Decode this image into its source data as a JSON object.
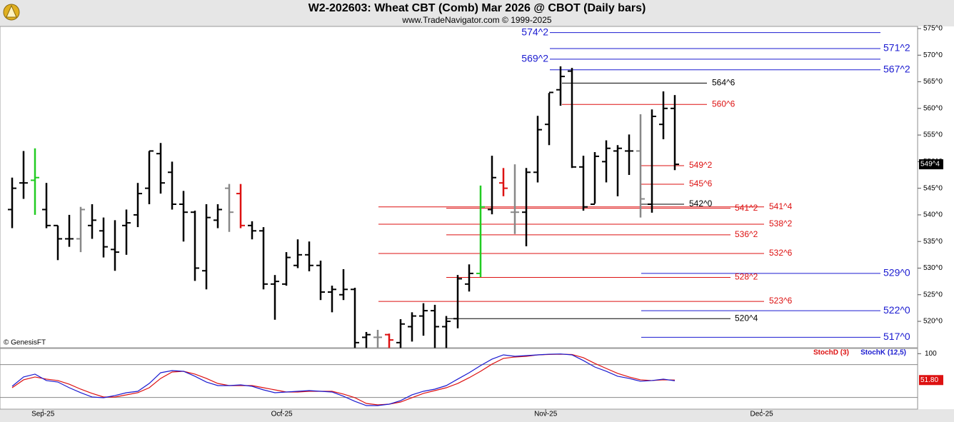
{
  "chart_data": {
    "type": "ohlc",
    "title": "W2-202603:  Wheat CBT (Comb) Mar 2026 @ CBOT  (Daily bars)",
    "subtitle": "www.TradeNavigator.com © 1999-2025",
    "watermark": "© GenesisFT",
    "categories": [
      null,
      null,
      null,
      null,
      null,
      null,
      null,
      null,
      null,
      null,
      null,
      null,
      null,
      null,
      null,
      null,
      null,
      null,
      null,
      null,
      null,
      null,
      null,
      null,
      null,
      null,
      null,
      null,
      null,
      null,
      null,
      null,
      null,
      null,
      null,
      null,
      null,
      null,
      null,
      null,
      null,
      null,
      null,
      null,
      null,
      null,
      null,
      null,
      null,
      null,
      null,
      null,
      null,
      null,
      null,
      null,
      null,
      null,
      null
    ],
    "xlim": [
      -1.0625,
      79.25
    ],
    "xticks": [
      {
        "value": 2.7,
        "label": "Sep-25"
      },
      {
        "value": 23.6,
        "label": "Oct-25"
      },
      {
        "value": 46.7,
        "label": "Nov-25"
      },
      {
        "value": 65.6,
        "label": "Dec-25"
      }
    ],
    "ylim": [
      515.04,
      575.4
    ],
    "yticks": [
      {
        "value": 575,
        "label": "575^0"
      },
      {
        "value": 570,
        "label": "570^0"
      },
      {
        "value": 565,
        "label": "565^0"
      },
      {
        "value": 560,
        "label": "560^0"
      },
      {
        "value": 555,
        "label": "555^0"
      },
      {
        "value": 550,
        "label": "550^0"
      },
      {
        "value": 545,
        "label": "545^0"
      },
      {
        "value": 540,
        "label": "540^0"
      },
      {
        "value": 535,
        "label": "535^0"
      },
      {
        "value": 530,
        "label": "530^0"
      },
      {
        "value": 525,
        "label": "525^0"
      },
      {
        "value": 520,
        "label": "520^0"
      }
    ],
    "ohlc": {
      "color": "#000000",
      "open": [
        541,
        546,
        546.5,
        541,
        538,
        535.5,
        535.5,
        538,
        537,
        533.5,
        538,
        540,
        545,
        551.5,
        548,
        542,
        540.5,
        529.5,
        539,
        545,
        544,
        538,
        537,
        527,
        527,
        530.5,
        532.5,
        530.5,
        525.5,
        525,
        526,
        517,
        517,
        517.5,
        516,
        519,
        521,
        522,
        519,
        520.5,
        527,
        529,
        541,
        546,
        540.5,
        540.5,
        548,
        557,
        563.5,
        567,
        549,
        542,
        550,
        552,
        552,
        552,
        542,
        557,
        560
      ],
      "high": [
        547,
        552,
        552.5,
        546,
        538,
        540,
        541.5,
        542,
        539.5,
        539,
        541,
        546,
        552,
        553.5,
        550,
        544.5,
        540.8,
        542,
        542,
        545.8,
        545.8,
        538.8,
        537.7,
        528.7,
        533,
        535.4,
        535,
        531.4,
        526.7,
        529.8,
        526.3,
        518,
        518.4,
        517.7,
        520.4,
        521.7,
        523.4,
        523.1,
        521,
        528.7,
        530.7,
        545.5,
        551.1,
        548.8,
        549.5,
        548.8,
        558.6,
        562.9,
        567.9,
        567.6,
        551.1,
        551.8,
        554,
        553.1,
        555.1,
        558.9,
        559.8,
        563.2,
        562.5
      ],
      "low": [
        537.5,
        543,
        540,
        537.5,
        531.5,
        534,
        533,
        535.5,
        532,
        529.5,
        532.5,
        537.7,
        542,
        544,
        541,
        535,
        527.6,
        526,
        537.5,
        536.8,
        537.5,
        535.4,
        526,
        520.3,
        526.7,
        530,
        529.4,
        524,
        521.7,
        524,
        515,
        515,
        515,
        515,
        515,
        516.2,
        517.3,
        515,
        515,
        518.7,
        525.6,
        528.3,
        540.1,
        543.5,
        536.4,
        534.1,
        546.1,
        553.1,
        560.5,
        548.8,
        540.8,
        542.1,
        546.1,
        543.5,
        547.5,
        539.5,
        540.4,
        554.2,
        548.4
      ],
      "close": [
        545,
        546,
        547,
        538,
        535.5,
        535.5,
        541,
        539,
        534,
        533,
        538.5,
        544,
        552,
        546,
        542,
        540.5,
        530,
        539.5,
        541,
        540.5,
        538,
        537,
        527,
        527.5,
        532,
        532.5,
        530.5,
        525.5,
        526,
        526,
        516,
        517.5,
        517,
        516.5,
        519.5,
        521,
        522,
        519,
        520,
        528,
        529,
        541.5,
        547,
        545,
        540.5,
        548,
        556,
        563,
        566,
        549,
        541.5,
        551,
        552.5,
        552.5,
        552,
        543,
        558.5,
        560,
        549.5
      ],
      "highlights": [
        {
          "index": 2,
          "color": "#22cc22"
        },
        {
          "index": 6,
          "color": "#888888"
        },
        {
          "index": 19,
          "color": "#888888"
        },
        {
          "index": 20,
          "color": "#dd1111"
        },
        {
          "index": 32,
          "color": "#888888"
        },
        {
          "index": 33,
          "color": "#dd1111"
        },
        {
          "index": 41,
          "color": "#22cc22"
        },
        {
          "index": 43,
          "color": "#dd1111"
        },
        {
          "index": 44,
          "color": "#888888"
        },
        {
          "index": 55,
          "color": "#888888"
        }
      ]
    },
    "last_price": {
      "value": 549.5,
      "label": "549^4"
    },
    "levels": [
      {
        "value": 574.25,
        "label": "574^2",
        "color": "#1a1ad0"
      },
      {
        "value": 571.25,
        "label": "571^2",
        "color": "#1a1ad0"
      },
      {
        "value": 569.25,
        "label": "569^2",
        "color": "#1a1ad0"
      },
      {
        "value": 567.25,
        "label": "567^2",
        "color": "#1a1ad0"
      },
      {
        "value": 564.75,
        "label": "564^6",
        "color": "#000000"
      },
      {
        "value": 560.75,
        "label": "560^6",
        "color": "#dd1111"
      },
      {
        "value": 549.25,
        "label": "549^2",
        "color": "#dd1111"
      },
      {
        "value": 545.75,
        "label": "545^6",
        "color": "#dd1111"
      },
      {
        "value": 542.0,
        "label": "542^0",
        "color": "#000000"
      },
      {
        "value": 541.25,
        "label": "541^2",
        "color": "#dd1111"
      },
      {
        "value": 541.5,
        "label": "541^4",
        "color": "#dd1111"
      },
      {
        "value": 538.25,
        "label": "538^2",
        "color": "#dd1111"
      },
      {
        "value": 536.25,
        "label": "536^2",
        "color": "#dd1111"
      },
      {
        "value": 532.75,
        "label": "532^6",
        "color": "#dd1111"
      },
      {
        "value": 529.0,
        "label": "529^0",
        "color": "#1a1ad0"
      },
      {
        "value": 528.25,
        "label": "528^2",
        "color": "#dd1111"
      },
      {
        "value": 523.75,
        "label": "523^6",
        "color": "#dd1111"
      },
      {
        "value": 522.0,
        "label": "522^0",
        "color": "#1a1ad0"
      },
      {
        "value": 520.5,
        "label": "520^4",
        "color": "#000000"
      },
      {
        "value": 517.0,
        "label": "517^0",
        "color": "#1a1ad0"
      }
    ],
    "indicator": {
      "type": "line",
      "ylim": [
        0,
        110.8
      ],
      "yticks": [
        100
      ],
      "bands": [
        20,
        80
      ],
      "series": [
        {
          "name": "StochD (3)",
          "color": "#dd1111",
          "values": [
            37.8,
            52.2,
            57.4,
            53.5,
            50.9,
            44.3,
            35.2,
            27.4,
            20.9,
            20.9,
            24.8,
            28.7,
            37.8,
            54.8,
            66.5,
            67.8,
            62.6,
            54.8,
            45.6,
            41.7,
            41.7,
            41.7,
            37.8,
            33.9,
            30.0,
            30.0,
            31.3,
            31.3,
            31.3,
            26.1,
            19.6,
            9.1,
            6.5,
            7.8,
            11.7,
            19.6,
            27.4,
            32.6,
            37.8,
            45.6,
            56.1,
            67.8,
            80.9,
            91.3,
            93.9,
            95.2,
            97.8,
            98.5,
            99.0,
            98.5,
            92.6,
            82.2,
            73.0,
            63.9,
            57.4,
            52.2,
            50.9,
            52.2,
            51.8
          ]
        },
        {
          "name": "StochK (12,5)",
          "color": "#1a1ad0",
          "values": [
            40.4,
            57.4,
            62.6,
            50.9,
            48.2,
            37.8,
            28.7,
            20.9,
            19.6,
            23.5,
            28.7,
            31.3,
            45.6,
            65.2,
            69.1,
            67.8,
            58.7,
            48.2,
            41.7,
            41.7,
            43.0,
            40.4,
            33.9,
            28.7,
            30.0,
            31.3,
            32.6,
            31.3,
            30.0,
            22.2,
            13.0,
            5.2,
            5.2,
            7.8,
            14.3,
            24.8,
            31.3,
            35.2,
            41.7,
            53.5,
            65.2,
            78.2,
            90.0,
            97.8,
            95.2,
            96.5,
            97.8,
            99.0,
            99.5,
            97.8,
            87.4,
            75.6,
            67.8,
            58.7,
            54.8,
            49.6,
            50.9,
            53.5,
            50.5
          ]
        }
      ],
      "last_value": {
        "value": 51.8,
        "label": "51.80"
      }
    }
  }
}
